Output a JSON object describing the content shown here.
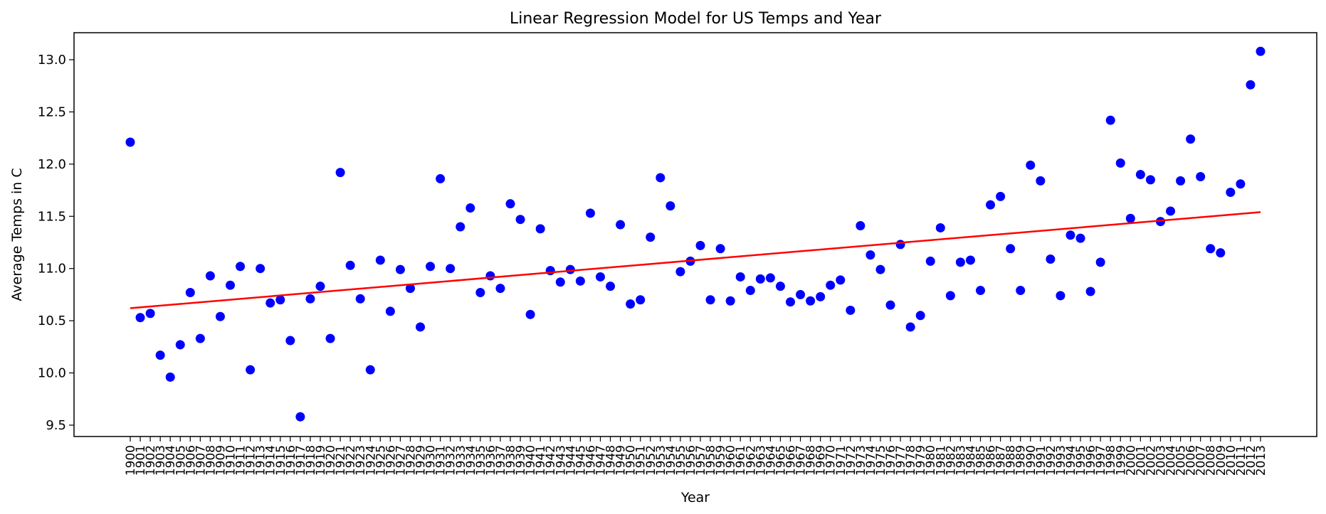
{
  "chart_data": {
    "type": "scatter",
    "title": "Linear Regression Model for US Temps and Year",
    "xlabel": "Year",
    "ylabel": "Average Temps in C",
    "xlim": [
      1900,
      2013
    ],
    "ylim": [
      9.5,
      13.0
    ],
    "yticks": [
      "9.5",
      "10.0",
      "10.5",
      "11.0",
      "11.5",
      "12.0",
      "12.5",
      "13.0"
    ],
    "grid": false,
    "legend": "none",
    "x": [
      1900,
      1901,
      1902,
      1903,
      1904,
      1905,
      1906,
      1907,
      1908,
      1909,
      1910,
      1911,
      1912,
      1913,
      1914,
      1915,
      1916,
      1917,
      1918,
      1919,
      1920,
      1921,
      1922,
      1923,
      1924,
      1925,
      1926,
      1927,
      1928,
      1929,
      1930,
      1931,
      1932,
      1933,
      1934,
      1935,
      1936,
      1937,
      1938,
      1939,
      1940,
      1941,
      1942,
      1943,
      1944,
      1945,
      1946,
      1947,
      1948,
      1949,
      1950,
      1951,
      1952,
      1953,
      1954,
      1955,
      1956,
      1957,
      1958,
      1959,
      1960,
      1961,
      1962,
      1963,
      1964,
      1965,
      1966,
      1967,
      1968,
      1969,
      1970,
      1971,
      1972,
      1973,
      1974,
      1975,
      1976,
      1977,
      1978,
      1979,
      1980,
      1981,
      1982,
      1983,
      1984,
      1985,
      1986,
      1987,
      1988,
      1989,
      1990,
      1991,
      1992,
      1993,
      1994,
      1995,
      1996,
      1997,
      1998,
      1999,
      2000,
      2001,
      2002,
      2003,
      2004,
      2005,
      2006,
      2007,
      2008,
      2009,
      2010,
      2011,
      2012,
      2013
    ],
    "series": [
      {
        "type": "scatter",
        "color": "#0000ff",
        "values": [
          12.21,
          10.53,
          10.57,
          10.17,
          9.96,
          10.27,
          10.77,
          10.33,
          10.93,
          10.54,
          10.84,
          11.02,
          10.03,
          11.0,
          10.67,
          10.7,
          10.31,
          9.58,
          10.71,
          10.83,
          10.33,
          11.92,
          11.03,
          10.71,
          10.03,
          11.08,
          10.59,
          10.99,
          10.81,
          10.44,
          11.02,
          11.86,
          11.0,
          11.4,
          11.58,
          10.77,
          10.93,
          10.81,
          11.62,
          11.47,
          10.56,
          11.38,
          10.98,
          10.87,
          10.99,
          10.88,
          11.53,
          10.92,
          10.83,
          11.42,
          10.66,
          10.7,
          11.3,
          11.87,
          11.6,
          10.97,
          11.07,
          11.22,
          10.7,
          11.19,
          10.69,
          10.92,
          10.79,
          10.9,
          10.91,
          10.83,
          10.68,
          10.75,
          10.69,
          10.73,
          10.84,
          10.89,
          10.6,
          11.41,
          11.13,
          10.99,
          10.65,
          11.23,
          10.44,
          10.55,
          11.07,
          11.39,
          10.74,
          11.06,
          11.08,
          10.79,
          11.61,
          11.69,
          11.19,
          10.79,
          11.99,
          11.84,
          11.09,
          10.74,
          11.32,
          11.29,
          10.78,
          11.06,
          12.42,
          12.01,
          11.48,
          11.9,
          11.85,
          11.45,
          11.55,
          11.84,
          12.24,
          11.88,
          11.19,
          11.15,
          11.73,
          11.81,
          12.76,
          13.08
        ]
      },
      {
        "type": "line",
        "color": "#ff0000",
        "x": [
          1900,
          2013
        ],
        "values": [
          10.62,
          11.54
        ]
      }
    ]
  }
}
